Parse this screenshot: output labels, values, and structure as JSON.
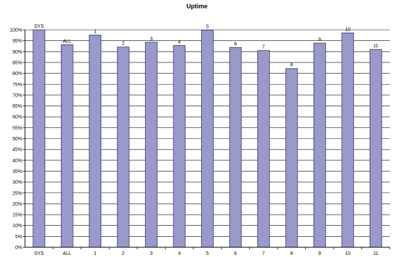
{
  "chart_data": {
    "type": "bar",
    "title": "Uptime",
    "xlabel": "",
    "ylabel": "",
    "ylim": [
      0,
      100
    ],
    "ytick_step": 5,
    "ytick_format": "percent",
    "grid": true,
    "legend": "none",
    "categories": [
      "SYS",
      "ALL",
      "1",
      "2",
      "3",
      "4",
      "5",
      "6",
      "7",
      "8",
      "9",
      "10",
      "11"
    ],
    "values": [
      100,
      93.2,
      97.6,
      92.1,
      94.3,
      92.8,
      99.8,
      91.9,
      90.5,
      82.2,
      93.9,
      98.6,
      91.0
    ],
    "data_labels": [
      "SYS",
      "ALL",
      "1",
      "2",
      "3",
      "4",
      "5",
      "6",
      "7",
      "8",
      "9",
      "10",
      "11"
    ],
    "colors": {
      "bar_fill": "#9999cc",
      "bar_stroke": "#333366",
      "grid": "#000000",
      "axis": "#000000"
    }
  }
}
